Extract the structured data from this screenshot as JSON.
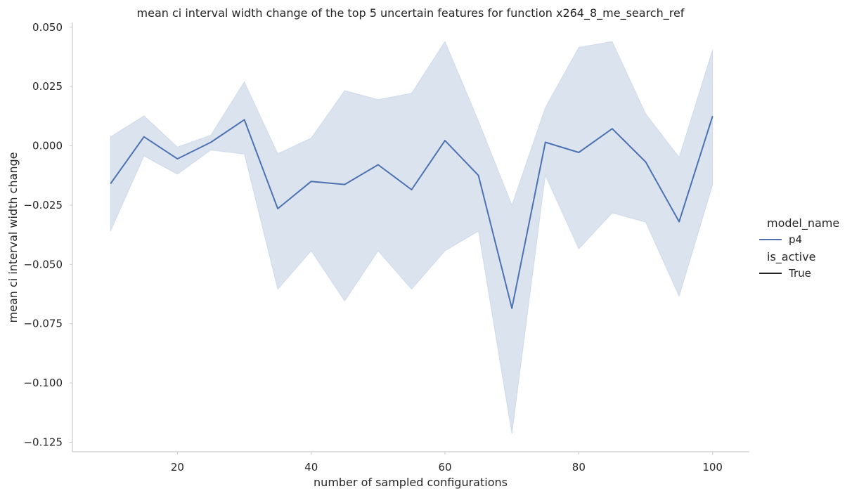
{
  "chart_data": {
    "type": "line",
    "title": "mean ci interval width change of the top 5 uncertain features for function x264_8_me_search_ref",
    "xlabel": "number of sampled configurations",
    "ylabel": "mean ci interval width change",
    "xlim": [
      4.3,
      105.5
    ],
    "ylim": [
      -0.129,
      0.052
    ],
    "xticks": [
      20,
      40,
      60,
      80,
      100
    ],
    "yticks": [
      0.05,
      0.025,
      0.0,
      -0.025,
      -0.05,
      -0.075,
      -0.1,
      -0.125
    ],
    "ytick_labels": [
      "0.050",
      "0.025",
      "0.000",
      "−0.025",
      "−0.050",
      "−0.075",
      "−0.100",
      "−0.125"
    ],
    "xtick_labels": [
      "20",
      "40",
      "60",
      "80",
      "100"
    ],
    "grid": false,
    "legend": {
      "placement": "right",
      "hue_title": "model_name",
      "hue_entries": [
        "p4"
      ],
      "style_title": "is_active",
      "style_entries": [
        "True"
      ]
    },
    "colors": {
      "line": "#4c72b0",
      "band": "#4c72b0",
      "axis": "#cccccc"
    },
    "x": [
      10,
      15,
      20,
      25,
      30,
      35,
      40,
      45,
      50,
      55,
      60,
      65,
      70,
      75,
      80,
      85,
      90,
      95,
      100
    ],
    "series": [
      {
        "name": "p4",
        "values": [
          -0.016,
          0.0038,
          -0.0055,
          0.0015,
          0.011,
          -0.0265,
          -0.015,
          -0.0163,
          -0.008,
          -0.0185,
          0.0022,
          -0.0125,
          -0.0685,
          0.0015,
          -0.0028,
          0.0072,
          -0.0068,
          -0.032,
          0.0125
        ],
        "ci_upper": [
          0.0038,
          0.0127,
          -0.0005,
          0.0045,
          0.027,
          -0.0033,
          0.0033,
          0.0233,
          0.0195,
          0.0222,
          0.044,
          0.0105,
          -0.025,
          0.0162,
          0.0415,
          0.044,
          0.0135,
          -0.0048,
          0.0405
        ],
        "ci_lower": [
          -0.036,
          -0.0043,
          -0.012,
          -0.0018,
          -0.0035,
          -0.0605,
          -0.0443,
          -0.0655,
          -0.0443,
          -0.0605,
          -0.0443,
          -0.036,
          -0.1215,
          -0.0125,
          -0.0435,
          -0.0283,
          -0.0322,
          -0.0635,
          -0.0165
        ]
      }
    ]
  }
}
